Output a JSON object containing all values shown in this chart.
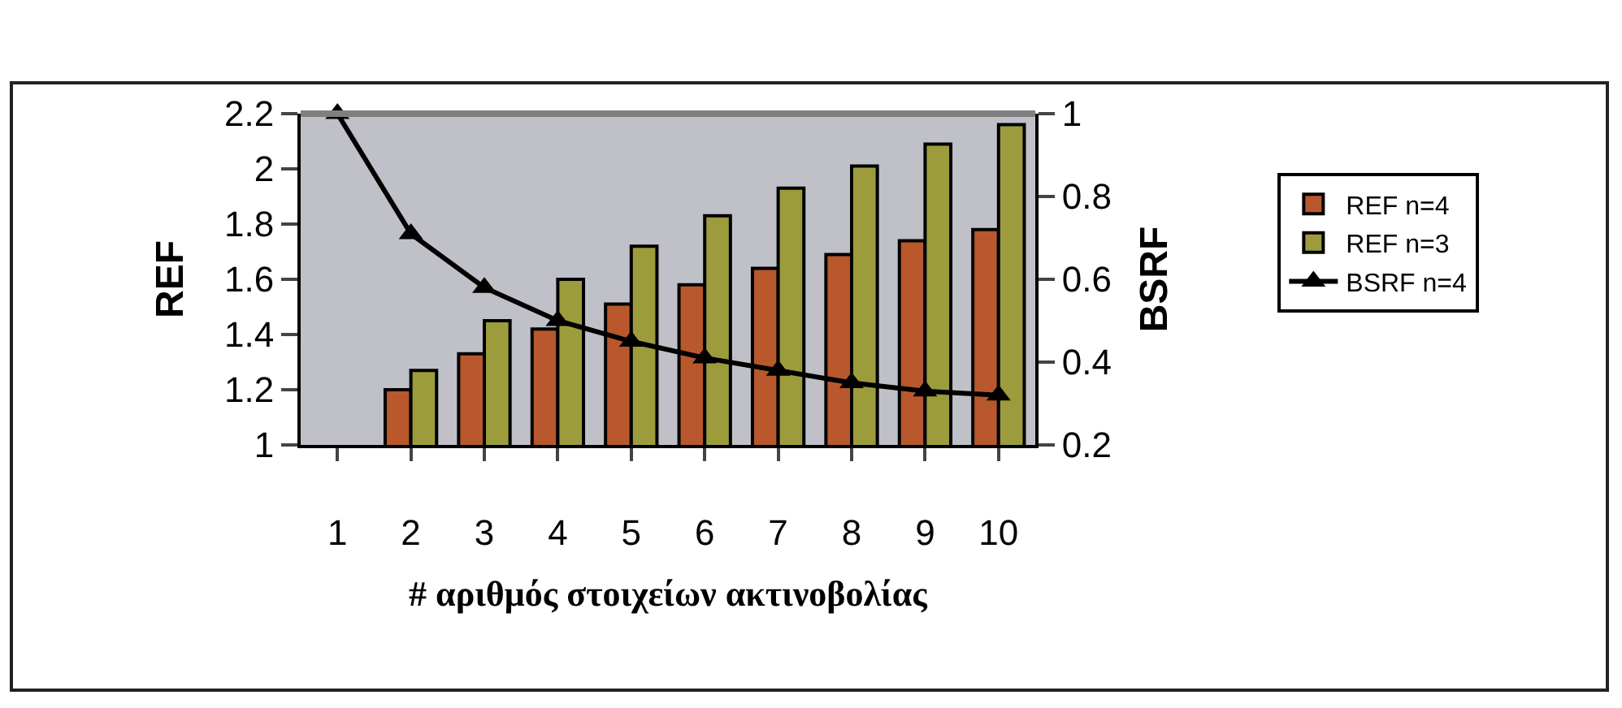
{
  "chart_data": {
    "type": "bar",
    "xlabel": "# αριθμός στοιχείων ακτινοβολίας",
    "ylabel": "REF",
    "y2label": "BSRF",
    "categories": [
      "1",
      "2",
      "3",
      "4",
      "5",
      "6",
      "7",
      "8",
      "9",
      "10"
    ],
    "series": [
      {
        "name": "REF n=4",
        "color": "#b8582c",
        "values": [
          null,
          1.2,
          1.33,
          1.42,
          1.51,
          1.58,
          1.64,
          1.69,
          1.74,
          1.78
        ]
      },
      {
        "name": "REF n=3",
        "color": "#9c9c3c",
        "values": [
          null,
          1.27,
          1.45,
          1.6,
          1.72,
          1.83,
          1.93,
          2.01,
          2.09,
          2.16
        ]
      },
      {
        "name": "BSRF n=4",
        "type": "line",
        "axis": "y2",
        "color": "#000000",
        "marker": "triangle",
        "values": [
          1,
          0.71,
          0.58,
          0.5,
          0.45,
          0.41,
          0.38,
          0.35,
          0.33,
          0.32
        ]
      }
    ],
    "ylim": [
      1,
      2.2
    ],
    "yticks": [
      1,
      1.2,
      1.4,
      1.6,
      1.8,
      2,
      2.2
    ],
    "y2lim": [
      0.2,
      1
    ],
    "y2ticks": [
      0.2,
      0.4,
      0.6,
      0.8,
      1
    ],
    "grid": false,
    "legend": "right"
  }
}
